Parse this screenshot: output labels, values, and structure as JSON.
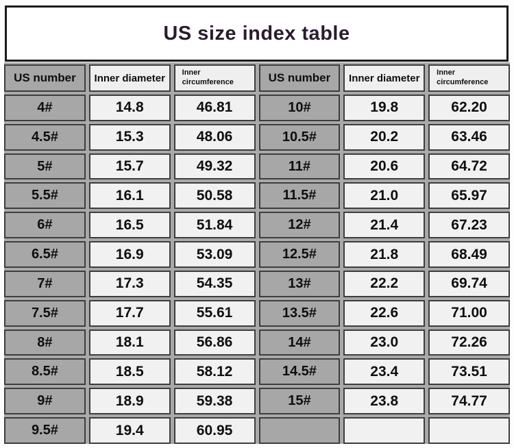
{
  "title": "US size index table",
  "chart_data": {
    "type": "table",
    "title": "US size index table",
    "columns": [
      "US number",
      "Inner diameter",
      "Inner circumference"
    ],
    "layout": "two column-groups side by side, 12 visual rows, last right-side row empty",
    "rows": [
      [
        "4#",
        "14.8",
        "46.81"
      ],
      [
        "4.5#",
        "15.3",
        "48.06"
      ],
      [
        "5#",
        "15.7",
        "49.32"
      ],
      [
        "5.5#",
        "16.1",
        "50.58"
      ],
      [
        "6#",
        "16.5",
        "51.84"
      ],
      [
        "6.5#",
        "16.9",
        "53.09"
      ],
      [
        "7#",
        "17.3",
        "54.35"
      ],
      [
        "7.5#",
        "17.7",
        "55.61"
      ],
      [
        "8#",
        "18.1",
        "56.86"
      ],
      [
        "8.5#",
        "18.5",
        "58.12"
      ],
      [
        "9#",
        "18.9",
        "59.38"
      ],
      [
        "9.5#",
        "19.4",
        "60.95"
      ],
      [
        "10#",
        "19.8",
        "62.20"
      ],
      [
        "10.5#",
        "20.2",
        "63.46"
      ],
      [
        "11#",
        "20.6",
        "64.72"
      ],
      [
        "11.5#",
        "21.0",
        "65.97"
      ],
      [
        "12#",
        "21.4",
        "67.23"
      ],
      [
        "12.5#",
        "21.8",
        "68.49"
      ],
      [
        "13#",
        "22.2",
        "69.74"
      ],
      [
        "13.5#",
        "22.6",
        "71.00"
      ],
      [
        "14#",
        "23.0",
        "72.26"
      ],
      [
        "14.5#",
        "23.4",
        "73.51"
      ],
      [
        "15#",
        "23.8",
        "74.77"
      ]
    ]
  },
  "colors": {
    "title_text": "#2b1b2e",
    "title_border": "#1a1a1a",
    "us_cell_bg": "#a7a7a7",
    "value_cell_bg": "#f1f1f1",
    "header_value_bg": "#efefef",
    "cell_border": "#3d3d3d",
    "table_gap_bg": "#a9a9a9",
    "page_bg": "#fdfdfd"
  }
}
